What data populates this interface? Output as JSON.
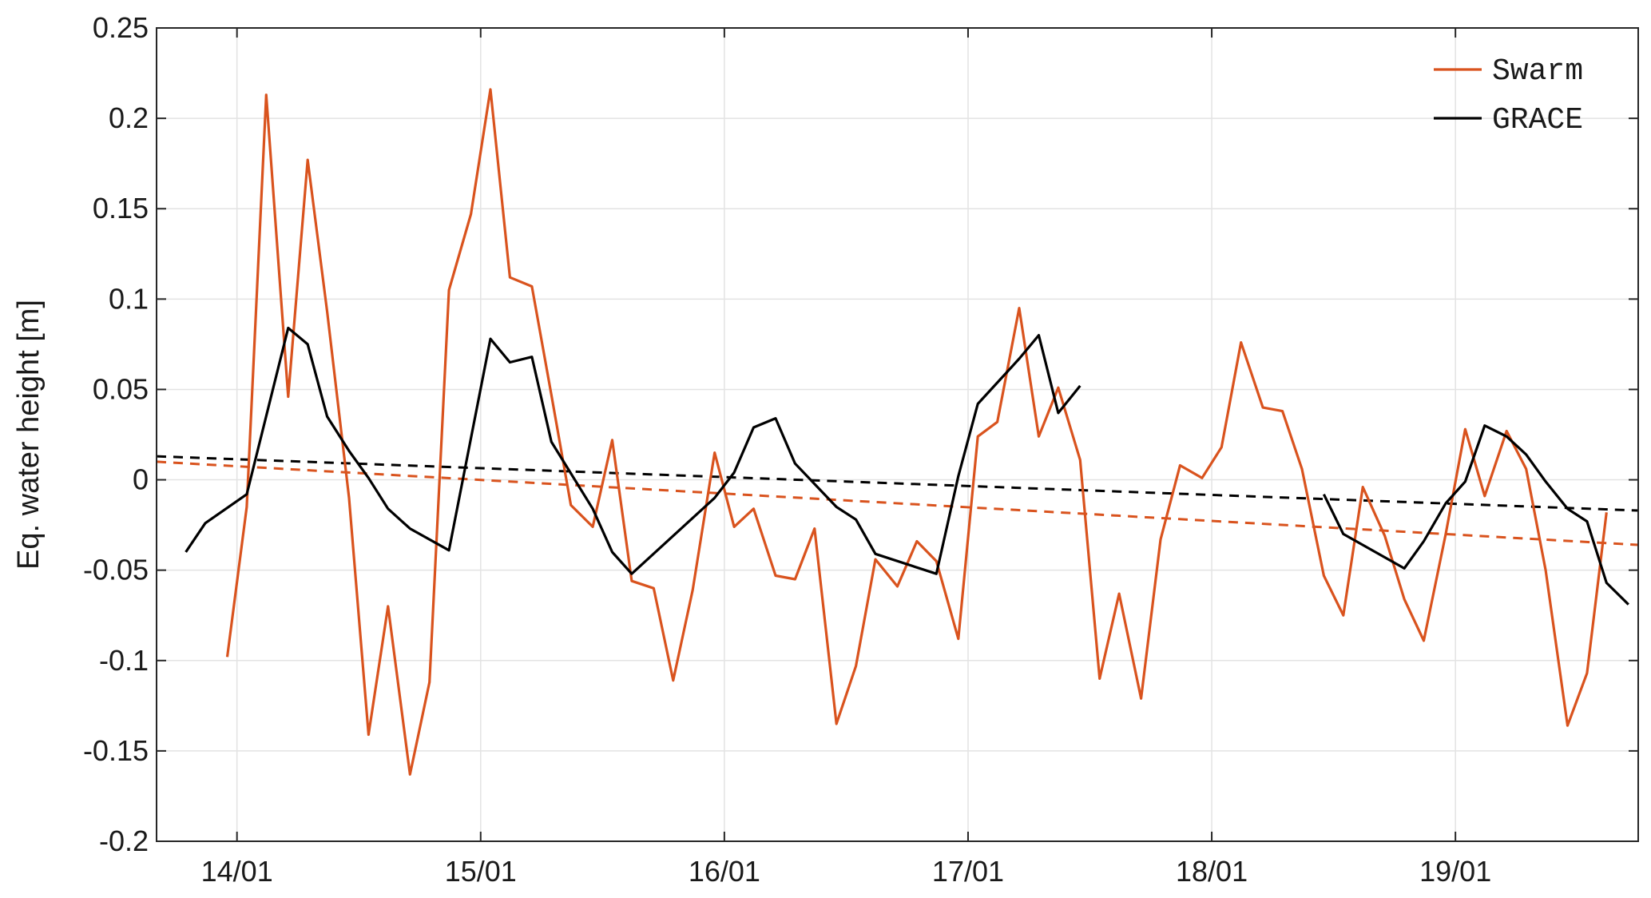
{
  "chart_data": {
    "type": "line",
    "title": "",
    "xlabel": "",
    "ylabel": "Eq. water height [m]",
    "x_unit": "year/month",
    "x_ticks": [
      {
        "label": "14/01",
        "value": 2014.0
      },
      {
        "label": "15/01",
        "value": 2015.0
      },
      {
        "label": "16/01",
        "value": 2016.0
      },
      {
        "label": "17/01",
        "value": 2017.0
      },
      {
        "label": "18/01",
        "value": 2018.0
      },
      {
        "label": "19/01",
        "value": 2019.0
      }
    ],
    "xlim": [
      2013.67,
      2019.75
    ],
    "ylim": [
      -0.2,
      0.25
    ],
    "y_ticks": [
      {
        "label": "0.25",
        "value": 0.25
      },
      {
        "label": "0.2",
        "value": 0.2
      },
      {
        "label": "0.15",
        "value": 0.15
      },
      {
        "label": "0.1",
        "value": 0.1
      },
      {
        "label": "0.05",
        "value": 0.05
      },
      {
        "label": "0",
        "value": 0
      },
      {
        "label": "-0.05",
        "value": -0.05
      },
      {
        "label": "-0.1",
        "value": -0.1
      },
      {
        "label": "-0.15",
        "value": -0.15
      },
      {
        "label": "-0.2",
        "value": -0.2
      }
    ],
    "grid": true,
    "legend_position": "top-right",
    "series": [
      {
        "name": "Swarm",
        "color": "#d9531e",
        "segments": [
          [
            [
              2013.96,
              -0.098
            ],
            [
              2014.04,
              -0.015
            ],
            [
              2014.12,
              0.213
            ],
            [
              2014.21,
              0.046
            ],
            [
              2014.29,
              0.177
            ],
            [
              2014.37,
              0.093
            ],
            [
              2014.46,
              -0.01
            ],
            [
              2014.54,
              -0.141
            ],
            [
              2014.62,
              -0.07
            ],
            [
              2014.71,
              -0.163
            ],
            [
              2014.79,
              -0.112
            ],
            [
              2014.87,
              0.105
            ],
            [
              2014.96,
              0.147
            ],
            [
              2015.04,
              0.216
            ],
            [
              2015.12,
              0.112
            ],
            [
              2015.21,
              0.107
            ],
            [
              2015.29,
              0.047
            ],
            [
              2015.37,
              -0.014
            ],
            [
              2015.46,
              -0.026
            ],
            [
              2015.54,
              0.022
            ],
            [
              2015.62,
              -0.056
            ],
            [
              2015.71,
              -0.06
            ],
            [
              2015.79,
              -0.111
            ],
            [
              2015.87,
              -0.061
            ],
            [
              2015.96,
              0.015
            ],
            [
              2016.04,
              -0.026
            ],
            [
              2016.12,
              -0.016
            ],
            [
              2016.21,
              -0.053
            ],
            [
              2016.29,
              -0.055
            ],
            [
              2016.37,
              -0.027
            ],
            [
              2016.46,
              -0.135
            ],
            [
              2016.54,
              -0.103
            ],
            [
              2016.62,
              -0.044
            ],
            [
              2016.71,
              -0.059
            ],
            [
              2016.79,
              -0.034
            ],
            [
              2016.87,
              -0.045
            ],
            [
              2016.96,
              -0.088
            ],
            [
              2017.04,
              0.024
            ],
            [
              2017.12,
              0.032
            ],
            [
              2017.21,
              0.095
            ],
            [
              2017.29,
              0.024
            ],
            [
              2017.37,
              0.051
            ],
            [
              2017.46,
              0.011
            ],
            [
              2017.54,
              -0.11
            ],
            [
              2017.62,
              -0.063
            ],
            [
              2017.71,
              -0.121
            ],
            [
              2017.79,
              -0.033
            ],
            [
              2017.87,
              0.008
            ],
            [
              2017.96,
              0.001
            ],
            [
              2018.04,
              0.018
            ],
            [
              2018.12,
              0.076
            ],
            [
              2018.21,
              0.04
            ],
            [
              2018.29,
              0.038
            ],
            [
              2018.37,
              0.006
            ],
            [
              2018.46,
              -0.053
            ],
            [
              2018.54,
              -0.075
            ],
            [
              2018.62,
              -0.004
            ],
            [
              2018.71,
              -0.031
            ],
            [
              2018.79,
              -0.066
            ],
            [
              2018.87,
              -0.089
            ],
            [
              2018.96,
              -0.03
            ],
            [
              2019.04,
              0.028
            ],
            [
              2019.12,
              -0.009
            ],
            [
              2019.21,
              0.027
            ],
            [
              2019.29,
              0.006
            ],
            [
              2019.37,
              -0.05
            ],
            [
              2019.46,
              -0.136
            ],
            [
              2019.54,
              -0.107
            ],
            [
              2019.62,
              -0.018
            ]
          ]
        ]
      },
      {
        "name": "GRACE",
        "color": "#000000",
        "segments": [
          [
            [
              2013.79,
              -0.04
            ],
            [
              2013.87,
              -0.024
            ],
            [
              2014.04,
              -0.008
            ],
            [
              2014.21,
              0.084
            ],
            [
              2014.29,
              0.075
            ],
            [
              2014.37,
              0.035
            ],
            [
              2014.46,
              0.016
            ],
            [
              2014.54,
              0.001
            ],
            [
              2014.62,
              -0.016
            ],
            [
              2014.71,
              -0.027
            ],
            [
              2014.87,
              -0.039
            ],
            [
              2015.04,
              0.078
            ],
            [
              2015.12,
              0.065
            ],
            [
              2015.21,
              0.068
            ],
            [
              2015.29,
              0.021
            ],
            [
              2015.46,
              -0.016
            ],
            [
              2015.54,
              -0.04
            ],
            [
              2015.62,
              -0.052
            ],
            [
              2015.96,
              -0.01
            ],
            [
              2016.04,
              0.004
            ],
            [
              2016.12,
              0.029
            ],
            [
              2016.21,
              0.034
            ],
            [
              2016.29,
              0.009
            ],
            [
              2016.46,
              -0.015
            ],
            [
              2016.54,
              -0.022
            ],
            [
              2016.62,
              -0.041
            ],
            [
              2016.87,
              -0.052
            ],
            [
              2016.96,
              0.002
            ],
            [
              2017.04,
              0.042
            ],
            [
              2017.21,
              0.067
            ],
            [
              2017.29,
              0.08
            ],
            [
              2017.37,
              0.037
            ],
            [
              2017.46,
              0.052
            ]
          ],
          [
            [
              2018.46,
              -0.008
            ],
            [
              2018.54,
              -0.03
            ],
            [
              2018.79,
              -0.049
            ],
            [
              2018.87,
              -0.034
            ],
            [
              2018.96,
              -0.013
            ],
            [
              2019.04,
              -0.001
            ],
            [
              2019.12,
              0.03
            ],
            [
              2019.21,
              0.024
            ],
            [
              2019.29,
              0.014
            ],
            [
              2019.37,
              -0.001
            ],
            [
              2019.46,
              -0.016
            ],
            [
              2019.54,
              -0.023
            ],
            [
              2019.62,
              -0.057
            ],
            [
              2019.71,
              -0.069
            ]
          ]
        ]
      }
    ],
    "trend_lines": [
      {
        "of": "Swarm",
        "color": "#d9531e",
        "style": "dashed",
        "x": [
          2013.67,
          2019.75
        ],
        "y": [
          0.01,
          -0.036
        ]
      },
      {
        "of": "GRACE",
        "color": "#000000",
        "style": "dashed",
        "x": [
          2013.67,
          2019.75
        ],
        "y": [
          0.013,
          -0.017
        ]
      }
    ]
  }
}
